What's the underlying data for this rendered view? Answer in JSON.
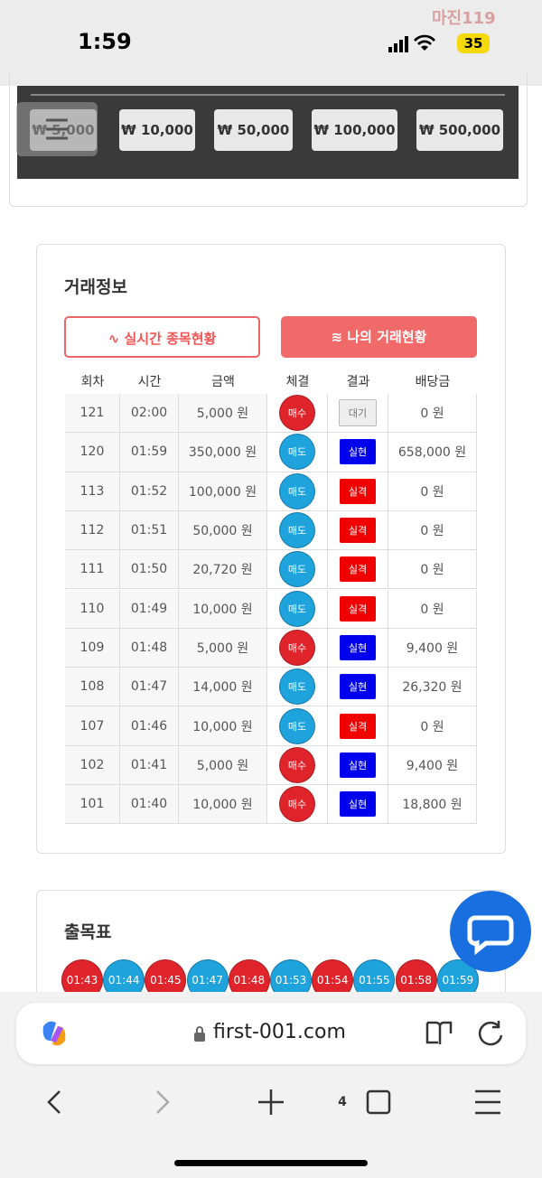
{
  "status_bar": {
    "time": "1:59",
    "battery": "35",
    "watermark": "마진119"
  },
  "amount_buttons": [
    "₩ 5,000",
    "₩ 10,000",
    "₩ 50,000",
    "₩ 100,000",
    "₩ 500,000"
  ],
  "trade_info": {
    "title": "거래정보",
    "tabs": [
      "실시간 종목현황",
      "나의 거래현황"
    ],
    "headers": [
      "회차",
      "시간",
      "금액",
      "체결",
      "결과",
      "배당금"
    ],
    "rows": [
      {
        "round": "121",
        "time": "02:00",
        "amount": "5,000 원",
        "side": "매수",
        "side_color": "#e0242b",
        "result": "대기",
        "result_color": "#eeeeee",
        "payout": "0 원"
      },
      {
        "round": "120",
        "time": "01:59",
        "amount": "350,000 원",
        "side": "매도",
        "side_color": "#1fa3dc",
        "result": "실현",
        "result_color": "#0000ee",
        "payout": "658,000 원"
      },
      {
        "round": "113",
        "time": "01:52",
        "amount": "100,000 원",
        "side": "매도",
        "side_color": "#1fa3dc",
        "result": "실격",
        "result_color": "#f00000",
        "payout": "0 원"
      },
      {
        "round": "112",
        "time": "01:51",
        "amount": "50,000 원",
        "side": "매도",
        "side_color": "#1fa3dc",
        "result": "실격",
        "result_color": "#f00000",
        "payout": "0 원"
      },
      {
        "round": "111",
        "time": "01:50",
        "amount": "20,720 원",
        "side": "매도",
        "side_color": "#1fa3dc",
        "result": "실격",
        "result_color": "#f00000",
        "payout": "0 원"
      },
      {
        "round": "110",
        "time": "01:49",
        "amount": "10,000 원",
        "side": "매도",
        "side_color": "#1fa3dc",
        "result": "실격",
        "result_color": "#f00000",
        "payout": "0 원"
      },
      {
        "round": "109",
        "time": "01:48",
        "amount": "5,000 원",
        "side": "매수",
        "side_color": "#e0242b",
        "result": "실현",
        "result_color": "#0000ee",
        "payout": "9,400 원"
      },
      {
        "round": "108",
        "time": "01:47",
        "amount": "14,000 원",
        "side": "매도",
        "side_color": "#1fa3dc",
        "result": "실현",
        "result_color": "#0000ee",
        "payout": "26,320 원"
      },
      {
        "round": "107",
        "time": "01:46",
        "amount": "10,000 원",
        "side": "매도",
        "side_color": "#1fa3dc",
        "result": "실격",
        "result_color": "#f00000",
        "payout": "0 원"
      },
      {
        "round": "102",
        "time": "01:41",
        "amount": "5,000 원",
        "side": "매수",
        "side_color": "#e0242b",
        "result": "실현",
        "result_color": "#0000ee",
        "payout": "9,400 원"
      },
      {
        "round": "101",
        "time": "01:40",
        "amount": "10,000 원",
        "side": "매수",
        "side_color": "#e0242b",
        "result": "실현",
        "result_color": "#0000ee",
        "payout": "18,800 원"
      }
    ]
  },
  "draw_table": {
    "title": "출목표",
    "chips": [
      {
        "label": "01:43",
        "color": "#e0242b"
      },
      {
        "label": "01:44",
        "color": "#1fa3dc"
      },
      {
        "label": "01:45",
        "color": "#e0242b"
      },
      {
        "label": "01:47",
        "color": "#1fa3dc"
      },
      {
        "label": "01:48",
        "color": "#e0242b"
      },
      {
        "label": "01:53",
        "color": "#1fa3dc"
      },
      {
        "label": "01:54",
        "color": "#e0242b"
      },
      {
        "label": "01:55",
        "color": "#1fa3dc"
      },
      {
        "label": "01:58",
        "color": "#e0242b"
      },
      {
        "label": "01:59",
        "color": "#1fa3dc"
      }
    ]
  },
  "browser": {
    "url": "first-001.com",
    "tab_count": "4"
  }
}
